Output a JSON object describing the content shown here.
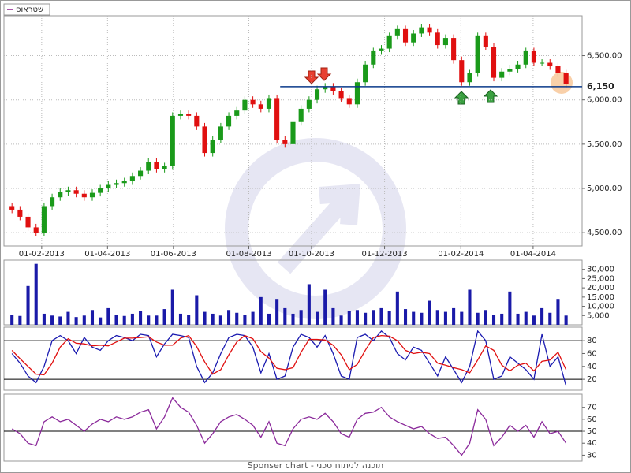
{
  "chart_data": [
    {
      "type": "candlestick",
      "name": "שטראוס",
      "legend_color": "#8b1a8b",
      "up_color": "#1a9a1a",
      "down_color": "#e01010",
      "xlim": [
        -1,
        71
      ],
      "xticks": [
        {
          "value": 3.7,
          "label": "01-02-2013"
        },
        {
          "value": 11.9,
          "label": "01-04-2013"
        },
        {
          "value": 20.1,
          "label": "01-06-2013"
        },
        {
          "value": 29.5,
          "label": "01-08-2013"
        },
        {
          "value": 37.3,
          "label": "01-10-2013"
        },
        {
          "value": 46.4,
          "label": "01-12-2013"
        },
        {
          "value": 55.9,
          "label": "01-02-2014"
        },
        {
          "value": 64.9,
          "label": "01-04-2014"
        }
      ],
      "ylim": [
        4350,
        6950
      ],
      "yticks": [
        {
          "value": 4500,
          "label": "4,500.00"
        },
        {
          "value": 5000,
          "label": "5,000.00"
        },
        {
          "value": 5500,
          "label": "5,500.00"
        },
        {
          "value": 6000,
          "label": "6,000.00"
        },
        {
          "value": 6500,
          "label": "6,500.00"
        }
      ],
      "grid": true,
      "level": {
        "value": 6150,
        "label": "6,150",
        "color": "#0a3a8a"
      },
      "open": [
        4800,
        4760,
        4680,
        4560,
        4500,
        4800,
        4900,
        4960,
        4980,
        4940,
        4900,
        4950,
        5000,
        5040,
        5060,
        5080,
        5140,
        5200,
        5300,
        5220,
        5250,
        5820,
        5840,
        5820,
        5700,
        5400,
        5550,
        5700,
        5820,
        5880,
        6000,
        5950,
        5900,
        6020,
        5550,
        5500,
        5750,
        5900,
        6000,
        6120,
        6150,
        6100,
        6020,
        5950,
        6200,
        6400,
        6550,
        6580,
        6720,
        6800,
        6650,
        6750,
        6820,
        6760,
        6620,
        6700,
        6450,
        6200,
        6300,
        6720,
        6600,
        6250,
        6320,
        6350,
        6400,
        6550,
        6420,
        6420,
        6380,
        6300
      ],
      "high": [
        4840,
        4800,
        4720,
        4600,
        4840,
        4940,
        5000,
        5020,
        5020,
        4980,
        4990,
        5040,
        5080,
        5100,
        5120,
        5180,
        5240,
        5340,
        5340,
        5290,
        5860,
        5880,
        5880,
        5860,
        5740,
        5590,
        5740,
        5860,
        5920,
        6040,
        6040,
        5990,
        6060,
        6060,
        5590,
        5790,
        5940,
        6040,
        6160,
        6190,
        6190,
        6140,
        6060,
        6240,
        6440,
        6590,
        6620,
        6760,
        6840,
        6840,
        6790,
        6860,
        6860,
        6800,
        6740,
        6740,
        6490,
        6340,
        6760,
        6760,
        6640,
        6360,
        6390,
        6440,
        6590,
        6590,
        6460,
        6460,
        6420,
        6340
      ],
      "low": [
        4720,
        4640,
        4520,
        4460,
        4460,
        4760,
        4860,
        4920,
        4900,
        4860,
        4860,
        4910,
        4960,
        5000,
        5020,
        5040,
        5100,
        5160,
        5180,
        5180,
        5210,
        5780,
        5780,
        5660,
        5360,
        5360,
        5510,
        5660,
        5780,
        5840,
        5910,
        5860,
        5860,
        5510,
        5460,
        5460,
        5710,
        5860,
        5960,
        6080,
        6060,
        5980,
        5910,
        5910,
        6160,
        6360,
        6510,
        6540,
        6680,
        6610,
        6610,
        6710,
        6720,
        6580,
        6580,
        6410,
        6160,
        6160,
        6260,
        6560,
        6210,
        6210,
        6280,
        6310,
        6360,
        6380,
        6380,
        6340,
        6260,
        6140
      ],
      "close": [
        4760,
        4680,
        4560,
        4500,
        4800,
        4900,
        4960,
        4980,
        4940,
        4900,
        4950,
        5000,
        5040,
        5060,
        5080,
        5140,
        5200,
        5300,
        5220,
        5250,
        5820,
        5840,
        5820,
        5700,
        5400,
        5550,
        5700,
        5820,
        5880,
        6000,
        5950,
        5900,
        6020,
        5550,
        5500,
        5750,
        5900,
        6000,
        6120,
        6150,
        6100,
        6020,
        5950,
        6200,
        6400,
        6550,
        6580,
        6720,
        6800,
        6650,
        6750,
        6820,
        6760,
        6620,
        6700,
        6450,
        6200,
        6300,
        6720,
        6600,
        6250,
        6320,
        6350,
        6400,
        6550,
        6420,
        6420,
        6380,
        6300,
        6180
      ]
    },
    {
      "type": "bar",
      "color": "#1a1aa8",
      "ylim": [
        0,
        35000
      ],
      "yticks": [
        {
          "value": 5000,
          "label": "5,000"
        },
        {
          "value": 10000,
          "label": "10,000"
        },
        {
          "value": 15000,
          "label": "15,000"
        },
        {
          "value": 20000,
          "label": "20,000"
        },
        {
          "value": 25000,
          "label": "25,000"
        },
        {
          "value": 30000,
          "label": "30,000"
        }
      ],
      "values": [
        5200,
        4800,
        21000,
        33000,
        6000,
        5000,
        4500,
        7000,
        4200,
        5000,
        8000,
        4000,
        9000,
        5500,
        4800,
        6000,
        7500,
        5000,
        5000,
        8500,
        19000,
        6000,
        5500,
        16000,
        7000,
        6000,
        5000,
        8000,
        6500,
        5500,
        7000,
        15000,
        6000,
        14000,
        9000,
        6000,
        8000,
        22000,
        7000,
        19000,
        9000,
        5000,
        7500,
        8000,
        6500,
        8000,
        9000,
        7500,
        18000,
        8500,
        7000,
        6500,
        13000,
        8000,
        7000,
        9000,
        7000,
        19000,
        6500,
        8000,
        5500,
        6000,
        18000,
        6000,
        7000,
        5000,
        9000,
        6500,
        14000,
        5000
      ]
    },
    {
      "type": "line",
      "ylim": [
        3,
        101
      ],
      "yticks": [
        20,
        40,
        60,
        80
      ],
      "levels": [
        20,
        80
      ],
      "series": [
        {
          "color": "#1a1ab0",
          "values": [
            60,
            45,
            25,
            15,
            40,
            80,
            88,
            80,
            60,
            85,
            70,
            65,
            80,
            88,
            85,
            80,
            90,
            88,
            55,
            75,
            90,
            88,
            85,
            40,
            15,
            30,
            60,
            85,
            90,
            88,
            70,
            30,
            60,
            20,
            25,
            70,
            90,
            85,
            70,
            88,
            60,
            25,
            20,
            85,
            90,
            80,
            95,
            85,
            60,
            50,
            70,
            65,
            45,
            25,
            55,
            35,
            15,
            40,
            95,
            80,
            20,
            25,
            55,
            45,
            35,
            20,
            90,
            40,
            55,
            10
          ]
        },
        {
          "color": "#e01010",
          "values": [
            65,
            52,
            40,
            28,
            27,
            45,
            70,
            83,
            76,
            75,
            72,
            73,
            72,
            78,
            84,
            84,
            85,
            86,
            78,
            73,
            73,
            84,
            88,
            71,
            47,
            28,
            35,
            58,
            78,
            88,
            83,
            63,
            53,
            37,
            35,
            38,
            62,
            82,
            82,
            81,
            73,
            58,
            35,
            43,
            65,
            85,
            88,
            87,
            80,
            65,
            60,
            62,
            60,
            45,
            42,
            38,
            35,
            30,
            50,
            72,
            65,
            42,
            33,
            42,
            45,
            33,
            48,
            50,
            62,
            35
          ]
        }
      ]
    },
    {
      "type": "line",
      "ylim": [
        25,
        81
      ],
      "yticks": [
        30,
        40,
        50,
        60,
        70
      ],
      "levels": [
        50
      ],
      "series": [
        {
          "color": "#8b2a9b",
          "values": [
            52,
            48,
            40,
            38,
            58,
            62,
            58,
            60,
            55,
            50,
            56,
            60,
            58,
            62,
            60,
            62,
            66,
            68,
            52,
            62,
            78,
            70,
            66,
            55,
            40,
            48,
            58,
            62,
            64,
            60,
            55,
            45,
            58,
            40,
            38,
            52,
            60,
            62,
            60,
            65,
            58,
            48,
            45,
            60,
            65,
            66,
            70,
            62,
            58,
            55,
            52,
            54,
            48,
            44,
            45,
            38,
            30,
            40,
            68,
            60,
            38,
            45,
            55,
            50,
            55,
            45,
            58,
            48,
            50,
            40
          ]
        }
      ]
    }
  ],
  "footer": "Sponser chart - תוכנה לניתוח טכני"
}
